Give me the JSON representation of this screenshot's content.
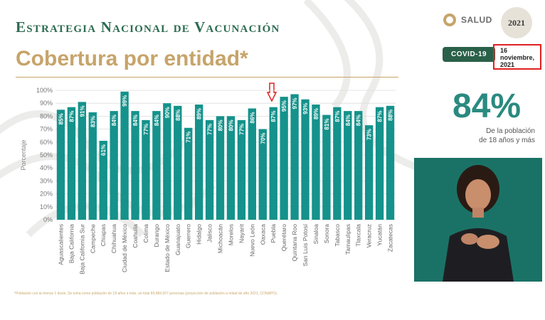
{
  "header": {
    "title": "Estrategia Nacional de Vacunación",
    "subtitle": "Cobertura por entidad*",
    "logo_text": "SALUD",
    "seal_text": "2021",
    "tag": "COVID-19",
    "date_lines": [
      "16",
      "noviembre,",
      "2021"
    ]
  },
  "stat": {
    "value": "84%",
    "caption_line1": "De la población",
    "caption_line2": "de 18 años y más"
  },
  "footer": {
    "note": "*Población con al menos 1 dosis. Se toma como población de 18 años o más, un total 89,484,507 personas (proyección de población a mitad de año 2021, CONAPO)."
  },
  "colors": {
    "bar": "#14928b",
    "accent_green": "#2a6049",
    "gold": "#c7a46a",
    "highlight": "#e02020"
  },
  "chart_data": {
    "type": "bar",
    "title": "",
    "ylabel": "Porcentaje",
    "xlabel": "",
    "ylim": [
      0,
      100
    ],
    "yticks": [
      "0%",
      "10%",
      "20%",
      "30%",
      "40%",
      "50%",
      "60%",
      "70%",
      "80%",
      "90%",
      "100%"
    ],
    "grid": true,
    "highlight_category": "Puebla",
    "categories": [
      "Aguascalientes",
      "Baja California",
      "Baja California Sur",
      "Campeche",
      "Chiapas",
      "Chihuahua",
      "Ciudad de México",
      "Coahuila",
      "Colima",
      "Durango",
      "Estado de México",
      "Guanajuato",
      "Guerrero",
      "Hidalgo",
      "Jalisco",
      "Michoacán",
      "Morelos",
      "Nayarit",
      "Nuevo León",
      "Oaxaca",
      "Puebla",
      "Querétaro",
      "Quintana Roo",
      "San Luis Potosí",
      "Sinaloa",
      "Sonora",
      "Tabasco",
      "Tamaulipas",
      "Tlaxcala",
      "Veracruz",
      "Yucatán",
      "Zacatecas"
    ],
    "values": [
      85,
      87,
      91,
      83,
      61,
      84,
      99,
      84,
      77,
      84,
      90,
      88,
      71,
      89,
      77,
      80,
      80,
      77,
      86,
      70,
      87,
      95,
      97,
      93,
      89,
      81,
      87,
      84,
      84,
      73,
      87,
      88
    ],
    "value_labels": [
      "85%",
      "87%",
      "91%",
      "83%",
      "61%",
      "84%",
      "99%",
      "84%",
      "77%",
      "84%",
      "90%",
      "88%",
      "71%",
      "89%",
      "77%",
      "80%",
      "80%",
      "77%",
      "86%",
      "70%",
      "87%",
      "95%",
      "97%",
      "93%",
      "89%",
      "81%",
      "87%",
      "84%",
      "84%",
      "73%",
      "87%",
      "88%"
    ]
  }
}
